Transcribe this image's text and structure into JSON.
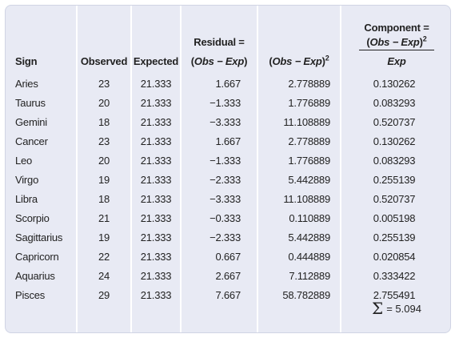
{
  "headers": {
    "sign": "Sign",
    "observed": "Observed",
    "expected": "Expected",
    "residual_line1": "Residual =",
    "residual_line2_open": "(",
    "residual_line2_expr": "Obs − Exp",
    "residual_line2_close": ")",
    "sq_open": "(",
    "sq_expr": "Obs − Exp",
    "sq_close": ")",
    "sq_exp": "2",
    "component_line1": "Component =",
    "component_num_open": "(",
    "component_num_expr": "Obs − Exp",
    "component_num_close": ")",
    "component_num_exp": "2",
    "component_den": "Exp"
  },
  "rows": [
    {
      "sign": "Aries",
      "observed": "23",
      "expected": "21.333",
      "residual": "1.667",
      "squared": "2.778889",
      "component": "0.130262"
    },
    {
      "sign": "Taurus",
      "observed": "20",
      "expected": "21.333",
      "residual": "−1.333",
      "squared": "1.776889",
      "component": "0.083293"
    },
    {
      "sign": "Gemini",
      "observed": "18",
      "expected": "21.333",
      "residual": "−3.333",
      "squared": "11.108889",
      "component": "0.520737"
    },
    {
      "sign": "Cancer",
      "observed": "23",
      "expected": "21.333",
      "residual": "1.667",
      "squared": "2.778889",
      "component": "0.130262"
    },
    {
      "sign": "Leo",
      "observed": "20",
      "expected": "21.333",
      "residual": "−1.333",
      "squared": "1.776889",
      "component": "0.083293"
    },
    {
      "sign": "Virgo",
      "observed": "19",
      "expected": "21.333",
      "residual": "−2.333",
      "squared": "5.442889",
      "component": "0.255139"
    },
    {
      "sign": "Libra",
      "observed": "18",
      "expected": "21.333",
      "residual": "−3.333",
      "squared": "11.108889",
      "component": "0.520737"
    },
    {
      "sign": "Scorpio",
      "observed": "21",
      "expected": "21.333",
      "residual": "−0.333",
      "squared": "0.110889",
      "component": "0.005198"
    },
    {
      "sign": "Sagittarius",
      "observed": "19",
      "expected": "21.333",
      "residual": "−2.333",
      "squared": "5.442889",
      "component": "0.255139"
    },
    {
      "sign": "Capricorn",
      "observed": "22",
      "expected": "21.333",
      "residual": "0.667",
      "squared": "0.444889",
      "component": "0.020854"
    },
    {
      "sign": "Aquarius",
      "observed": "24",
      "expected": "21.333",
      "residual": "2.667",
      "squared": "7.112889",
      "component": "0.333422"
    },
    {
      "sign": "Pisces",
      "observed": "29",
      "expected": "21.333",
      "residual": "7.667",
      "squared": "58.782889",
      "component": "2.755491"
    }
  ],
  "sum": {
    "symbol": "Σ",
    "text": "= 5.094"
  },
  "colors": {
    "panel_background": "#e8eaf4",
    "column_divider": "#ffffff"
  }
}
